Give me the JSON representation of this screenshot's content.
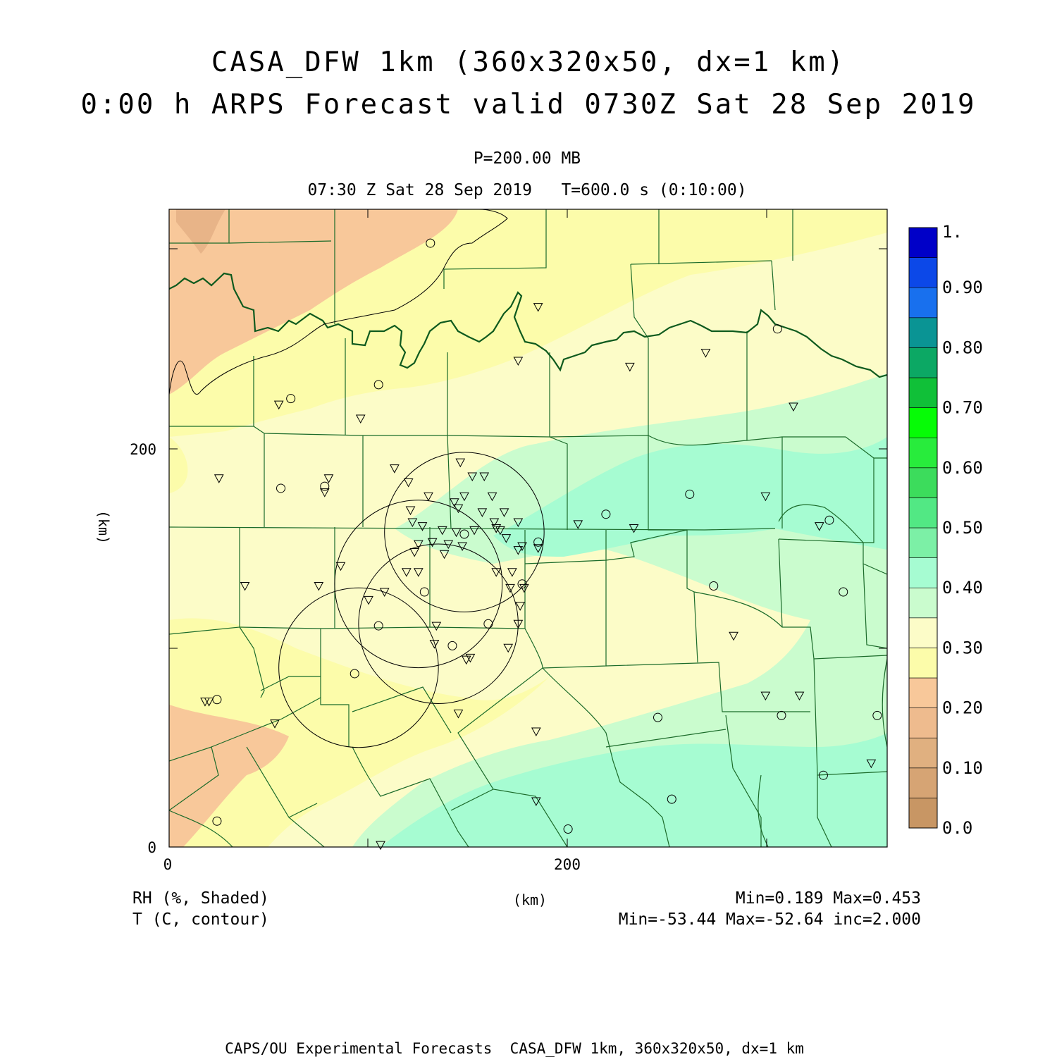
{
  "title": {
    "line1": "CASA_DFW 1km (360x320x50, dx=1 km)",
    "line2": "0:00 h ARPS Forecast valid 0730Z Sat 28 Sep 2019"
  },
  "subtitle": {
    "level": "P=200.00 MB",
    "time": "07:30 Z Sat 28 Sep 2019   T=600.0 s (0:10:00)"
  },
  "chart_data": {
    "type": "heatmap",
    "variable_shaded": "RH (%, Shaded)",
    "variable_contour": "T (C, contour)",
    "xlabel": "(km)",
    "ylabel": "(km)",
    "x_ticks": [
      "0",
      "200"
    ],
    "y_ticks": [
      "0",
      "200"
    ],
    "xlim": [
      0,
      360
    ],
    "ylim": [
      0,
      320
    ],
    "stats_shaded": "Min=0.189 Max=0.453",
    "stats_contour": "Min=-53.44 Max=-52.64 inc=2.000",
    "colorbar": {
      "labels": [
        "1.",
        "0.90",
        "0.80",
        "0.70",
        "0.60",
        "0.50",
        "0.40",
        "0.30",
        "0.20",
        "0.10",
        "0.0"
      ],
      "levels": [
        {
          "from": 0.0,
          "to": 0.05,
          "color": "#c89664"
        },
        {
          "from": 0.05,
          "to": 0.1,
          "color": "#d6a474"
        },
        {
          "from": 0.1,
          "to": 0.15,
          "color": "#e0b080"
        },
        {
          "from": 0.15,
          "to": 0.2,
          "color": "#eebb8e"
        },
        {
          "from": 0.2,
          "to": 0.25,
          "color": "#f8c89a"
        },
        {
          "from": 0.25,
          "to": 0.3,
          "color": "#fcfcaa"
        },
        {
          "from": 0.3,
          "to": 0.35,
          "color": "#fcfcc8"
        },
        {
          "from": 0.35,
          "to": 0.4,
          "color": "#cafcce"
        },
        {
          "from": 0.4,
          "to": 0.45,
          "color": "#a6fcd2"
        },
        {
          "from": 0.45,
          "to": 0.5,
          "color": "#7cf0a6"
        },
        {
          "from": 0.5,
          "to": 0.55,
          "color": "#52e884"
        },
        {
          "from": 0.55,
          "to": 0.6,
          "color": "#3cdc5c"
        },
        {
          "from": 0.6,
          "to": 0.65,
          "color": "#28ec3c"
        },
        {
          "from": 0.65,
          "to": 0.7,
          "color": "#06fc06"
        },
        {
          "from": 0.7,
          "to": 0.75,
          "color": "#10c038"
        },
        {
          "from": 0.75,
          "to": 0.8,
          "color": "#0ca864"
        },
        {
          "from": 0.8,
          "to": 0.85,
          "color": "#0a9494"
        },
        {
          "from": 0.85,
          "to": 0.9,
          "color": "#1870ee"
        },
        {
          "from": 0.9,
          "to": 0.95,
          "color": "#0c48e8"
        },
        {
          "from": 0.95,
          "to": 1.0,
          "color": "#0000c8"
        }
      ]
    },
    "radar_rings": [
      {
        "x": 148,
        "y": 158,
        "r": 40
      },
      {
        "x": 125,
        "y": 132,
        "r": 42
      },
      {
        "x": 135,
        "y": 112,
        "r": 40
      },
      {
        "x": 95,
        "y": 90,
        "r": 40
      }
    ],
    "stations_circle": [
      [
        131,
        303
      ],
      [
        61,
        225
      ],
      [
        105,
        232
      ],
      [
        56,
        180
      ],
      [
        78,
        181
      ],
      [
        219,
        167
      ],
      [
        261,
        177
      ],
      [
        148,
        157
      ],
      [
        185,
        153
      ],
      [
        177,
        132
      ],
      [
        128,
        128
      ],
      [
        160,
        112
      ],
      [
        105,
        111
      ],
      [
        142,
        101
      ],
      [
        93,
        87
      ],
      [
        305,
        260
      ],
      [
        331,
        164
      ],
      [
        338,
        128
      ],
      [
        273,
        131
      ],
      [
        307,
        66
      ],
      [
        245,
        65
      ],
      [
        24,
        74
      ],
      [
        24,
        13
      ],
      [
        355,
        66
      ],
      [
        328,
        36
      ],
      [
        252,
        24
      ],
      [
        200,
        9
      ]
    ],
    "stations_triangle": [
      [
        185,
        271
      ],
      [
        175,
        244
      ],
      [
        231,
        241
      ],
      [
        269,
        248
      ],
      [
        55,
        222
      ],
      [
        96,
        215
      ],
      [
        313,
        221
      ],
      [
        25,
        185
      ],
      [
        80,
        185
      ],
      [
        78,
        178
      ],
      [
        113,
        190
      ],
      [
        120,
        183
      ],
      [
        130,
        176
      ],
      [
        146,
        193
      ],
      [
        152,
        186
      ],
      [
        158,
        186
      ],
      [
        162,
        176
      ],
      [
        148,
        176
      ],
      [
        143,
        173
      ],
      [
        145,
        170
      ],
      [
        157,
        168
      ],
      [
        168,
        168
      ],
      [
        121,
        169
      ],
      [
        122,
        163
      ],
      [
        127,
        161
      ],
      [
        175,
        163
      ],
      [
        163,
        163
      ],
      [
        153,
        159
      ],
      [
        144,
        158
      ],
      [
        137,
        159
      ],
      [
        164,
        160
      ],
      [
        166,
        159
      ],
      [
        169,
        155
      ],
      [
        125,
        152
      ],
      [
        132,
        153
      ],
      [
        140,
        152
      ],
      [
        164,
        160
      ],
      [
        177,
        151
      ],
      [
        175,
        149
      ],
      [
        138,
        147
      ],
      [
        147,
        151
      ],
      [
        123,
        148
      ],
      [
        86,
        141
      ],
      [
        38,
        131
      ],
      [
        75,
        131
      ],
      [
        125,
        138
      ],
      [
        164,
        138
      ],
      [
        172,
        138
      ],
      [
        119,
        138
      ],
      [
        178,
        130
      ],
      [
        108,
        128
      ],
      [
        176,
        121
      ],
      [
        171,
        130
      ],
      [
        185,
        150
      ],
      [
        175,
        112
      ],
      [
        134,
        111
      ],
      [
        100,
        124
      ],
      [
        133,
        102
      ],
      [
        170,
        100
      ],
      [
        151,
        95
      ],
      [
        149,
        94
      ],
      [
        299,
        176
      ],
      [
        233,
        160
      ],
      [
        283,
        106
      ],
      [
        299,
        76
      ],
      [
        316,
        76
      ],
      [
        18,
        73
      ],
      [
        53,
        62
      ],
      [
        145,
        67
      ],
      [
        184,
        58
      ],
      [
        184,
        23
      ],
      [
        352,
        42
      ],
      [
        106,
        1
      ],
      [
        326,
        161
      ],
      [
        205,
        162
      ],
      [
        20,
        73
      ]
    ]
  },
  "footer": {
    "credit": "CAPS/OU Experimental Forecasts  CASA_DFW 1km, 360x320x50, dx=1 km"
  }
}
